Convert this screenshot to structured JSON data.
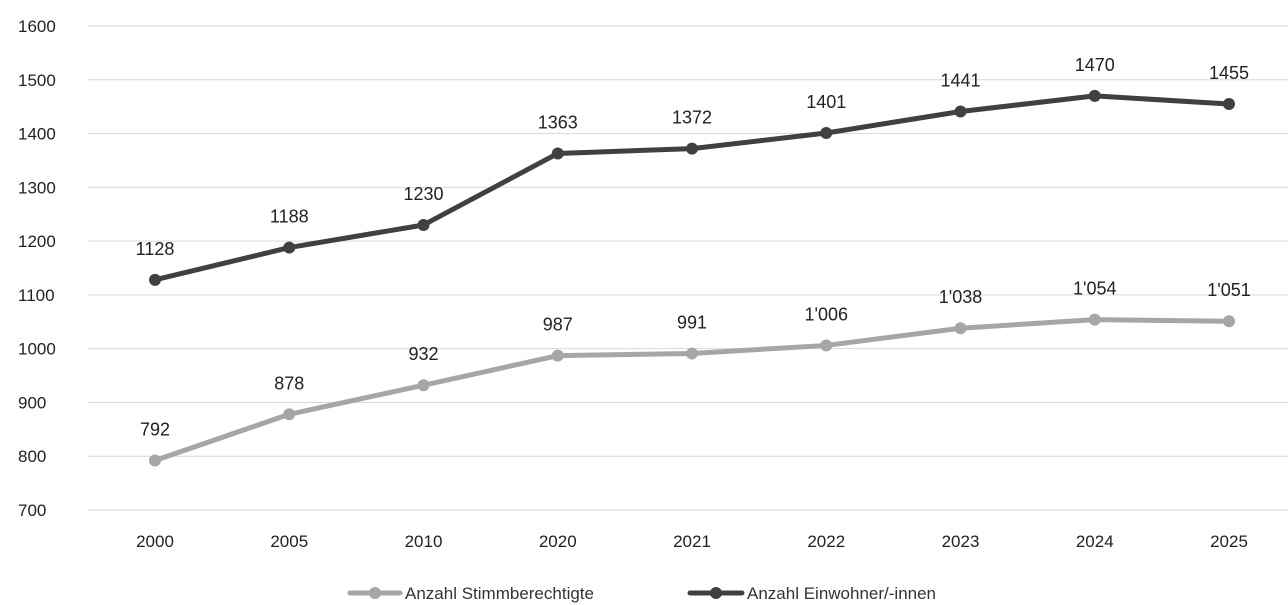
{
  "chart_data": {
    "type": "line",
    "title": "",
    "xlabel": "",
    "ylabel": "",
    "categories": [
      "2000",
      "2005",
      "2010",
      "2020",
      "2021",
      "2022",
      "2023",
      "2024",
      "2025"
    ],
    "ylim": [
      700,
      1600
    ],
    "yticks": [
      "700",
      "800",
      "900",
      "1000",
      "1100",
      "1200",
      "1300",
      "1400",
      "1500",
      "1600"
    ],
    "grid": true,
    "legend_position": "bottom",
    "series": [
      {
        "name": "Anzahl Stimmberechtigte",
        "color": "#a6a6a6",
        "values": [
          792,
          878,
          932,
          987,
          991,
          1006,
          1038,
          1054,
          1051
        ],
        "labels": [
          "792",
          "878",
          "932",
          "987",
          "991",
          "1'006",
          "1'038",
          "1'054",
          "1'051"
        ]
      },
      {
        "name": "Anzahl Einwohner/-innen",
        "color": "#404040",
        "values": [
          1128,
          1188,
          1230,
          1363,
          1372,
          1401,
          1441,
          1470,
          1455
        ],
        "labels": [
          "1128",
          "1188",
          "1230",
          "1363",
          "1372",
          "1401",
          "1441",
          "1470",
          "1455"
        ]
      }
    ]
  }
}
